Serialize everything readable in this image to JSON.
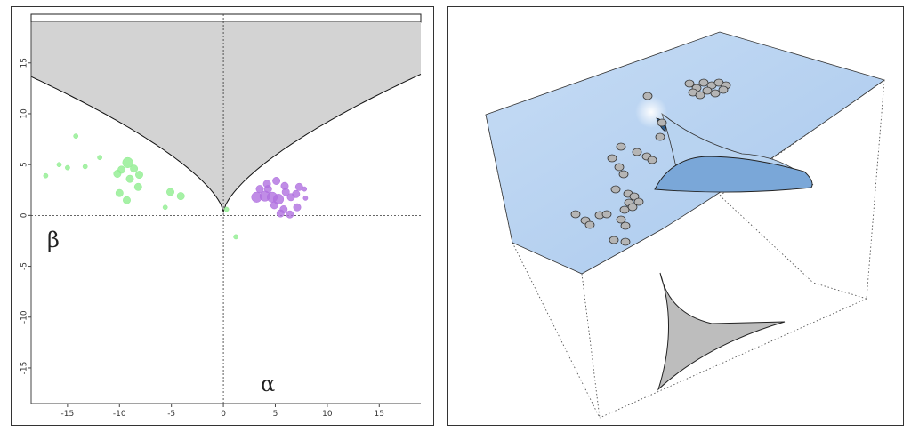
{
  "chart_data": [
    {
      "type": "scatter",
      "xlim": [
        -18.5,
        19
      ],
      "ylim": [
        -18.5,
        19
      ],
      "x_ticks": [
        -15,
        -10,
        -5,
        0,
        5,
        10,
        15
      ],
      "y_ticks": [
        -15,
        -10,
        -5,
        0,
        5,
        10,
        15
      ],
      "xlabel": "α",
      "ylabel": "β",
      "colors": {
        "region_fill": "#d3d3d3",
        "group_green": "#90ee90",
        "group_purple": "#b070e0"
      },
      "shaded_region": "cusp area",
      "reference_lines": {
        "x": 0,
        "y": 0
      },
      "series": [
        {
          "color": "#90ee90",
          "points": [
            [
              -17.1,
              3.9
            ],
            [
              -15.8,
              5.0
            ],
            [
              -15.0,
              4.7
            ],
            [
              -14.2,
              7.8
            ],
            [
              -13.3,
              4.8
            ],
            [
              -11.9,
              5.7
            ],
            [
              -10.2,
              4.1
            ],
            [
              -9.8,
              4.5
            ],
            [
              -9.2,
              5.2
            ],
            [
              -8.6,
              4.6
            ],
            [
              -8.1,
              4.0
            ],
            [
              -9.0,
              3.6
            ],
            [
              -10.0,
              2.2
            ],
            [
              -9.3,
              1.5
            ],
            [
              -8.2,
              2.8
            ],
            [
              -5.1,
              2.3
            ],
            [
              -4.1,
              1.9
            ],
            [
              -5.6,
              0.8
            ],
            [
              0.3,
              0.6
            ],
            [
              1.2,
              -2.1
            ]
          ],
          "sizes": [
            1,
            1,
            1,
            1,
            1,
            1,
            2,
            2,
            3,
            2,
            2,
            2,
            2,
            2,
            2,
            2,
            2,
            1,
            1,
            1
          ]
        },
        {
          "color": "#b070e0",
          "points": [
            [
              3.5,
              2.6
            ],
            [
              4.3,
              2.6
            ],
            [
              5.1,
              3.4
            ],
            [
              5.9,
              2.9
            ],
            [
              7.3,
              2.8
            ],
            [
              3.2,
              1.8
            ],
            [
              4.0,
              1.9
            ],
            [
              4.7,
              1.8
            ],
            [
              5.3,
              1.6
            ],
            [
              6.5,
              1.8
            ],
            [
              7.0,
              2.1
            ],
            [
              7.9,
              1.7
            ],
            [
              4.9,
              1.0
            ],
            [
              5.8,
              0.6
            ],
            [
              7.1,
              0.8
            ],
            [
              5.5,
              0.2
            ],
            [
              6.4,
              0.1
            ],
            [
              7.8,
              2.6
            ],
            [
              4.2,
              3.1
            ],
            [
              6.0,
              2.3
            ]
          ],
          "sizes": [
            2,
            2,
            2,
            2,
            2,
            3,
            3,
            3,
            3,
            2,
            2,
            1,
            2,
            2,
            2,
            2,
            2,
            1,
            2,
            2
          ]
        }
      ]
    },
    {
      "type": "surface",
      "surface_color": "#a9c8ec",
      "projection_color": "#bdbdbd",
      "point_color": "#b5b5b5",
      "n_points": 37
    }
  ]
}
